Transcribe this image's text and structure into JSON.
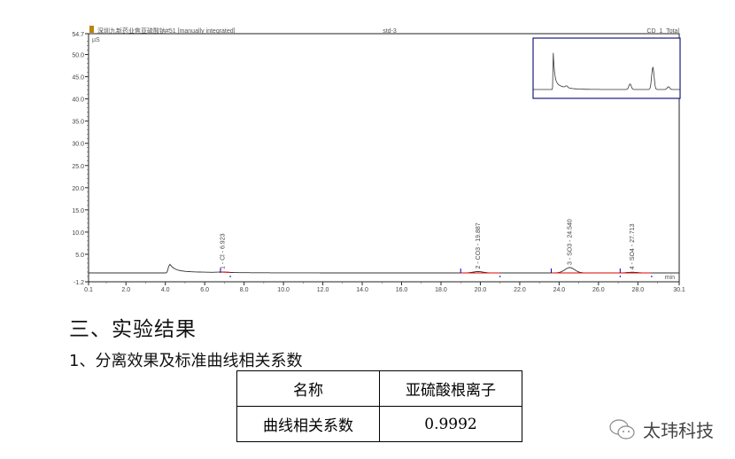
{
  "chart_data": {
    "type": "line",
    "header_left": "深圳九新药业焦亚硫酸钠#51 [manually integrated]",
    "header_center": "std-3",
    "header_right": "CD_1_Total",
    "ylabel": "µS",
    "xlabel": "min",
    "xlim": [
      0.1,
      30.1
    ],
    "ylim": [
      -1.2,
      54.7
    ],
    "xticks": [
      "0.1",
      "2.0",
      "4.0",
      "6.0",
      "8.0",
      "10.0",
      "12.0",
      "14.0",
      "16.0",
      "18.0",
      "20.0",
      "22.0",
      "24.0",
      "26.0",
      "28.0",
      "30.1"
    ],
    "yticks": [
      "-1.2",
      "5.0",
      "10.0",
      "15.0",
      "20.0",
      "25.0",
      "30.0",
      "35.0",
      "40.0",
      "45.0",
      "50.0",
      "54.7"
    ],
    "baseline": 0.8,
    "peaks": [
      {
        "label": "",
        "rt": 4.2,
        "height": 1.7
      },
      {
        "label": "1 - Cl - 6.923",
        "rt": 6.923,
        "height": 0.1
      },
      {
        "label": "2 - CO3 - 19.887",
        "rt": 19.887,
        "height": 0.3
      },
      {
        "label": "3 - SO3 - 24.540",
        "rt": 24.54,
        "height": 1.2
      },
      {
        "label": "4 - SO4 - 27.713",
        "rt": 27.713,
        "height": 0.15
      }
    ],
    "integration_windows": [
      [
        6.8,
        7.3
      ],
      [
        19.0,
        21.0
      ],
      [
        23.6,
        27.1
      ],
      [
        27.1,
        28.7
      ]
    ],
    "colors": {
      "trace": "#333333",
      "baseline_integration": "#e00000",
      "markers": "#0000cc",
      "inset_border": "#1a1a80"
    }
  },
  "section_title": "三、实验结果",
  "subsection_title": "1、分离效果及标准曲线相关系数",
  "table": {
    "headers": [
      "名称",
      "亚硫酸根离子"
    ],
    "rows": [
      [
        "曲线相关系数",
        "0.9992"
      ]
    ]
  },
  "watermark": "太玮科技"
}
